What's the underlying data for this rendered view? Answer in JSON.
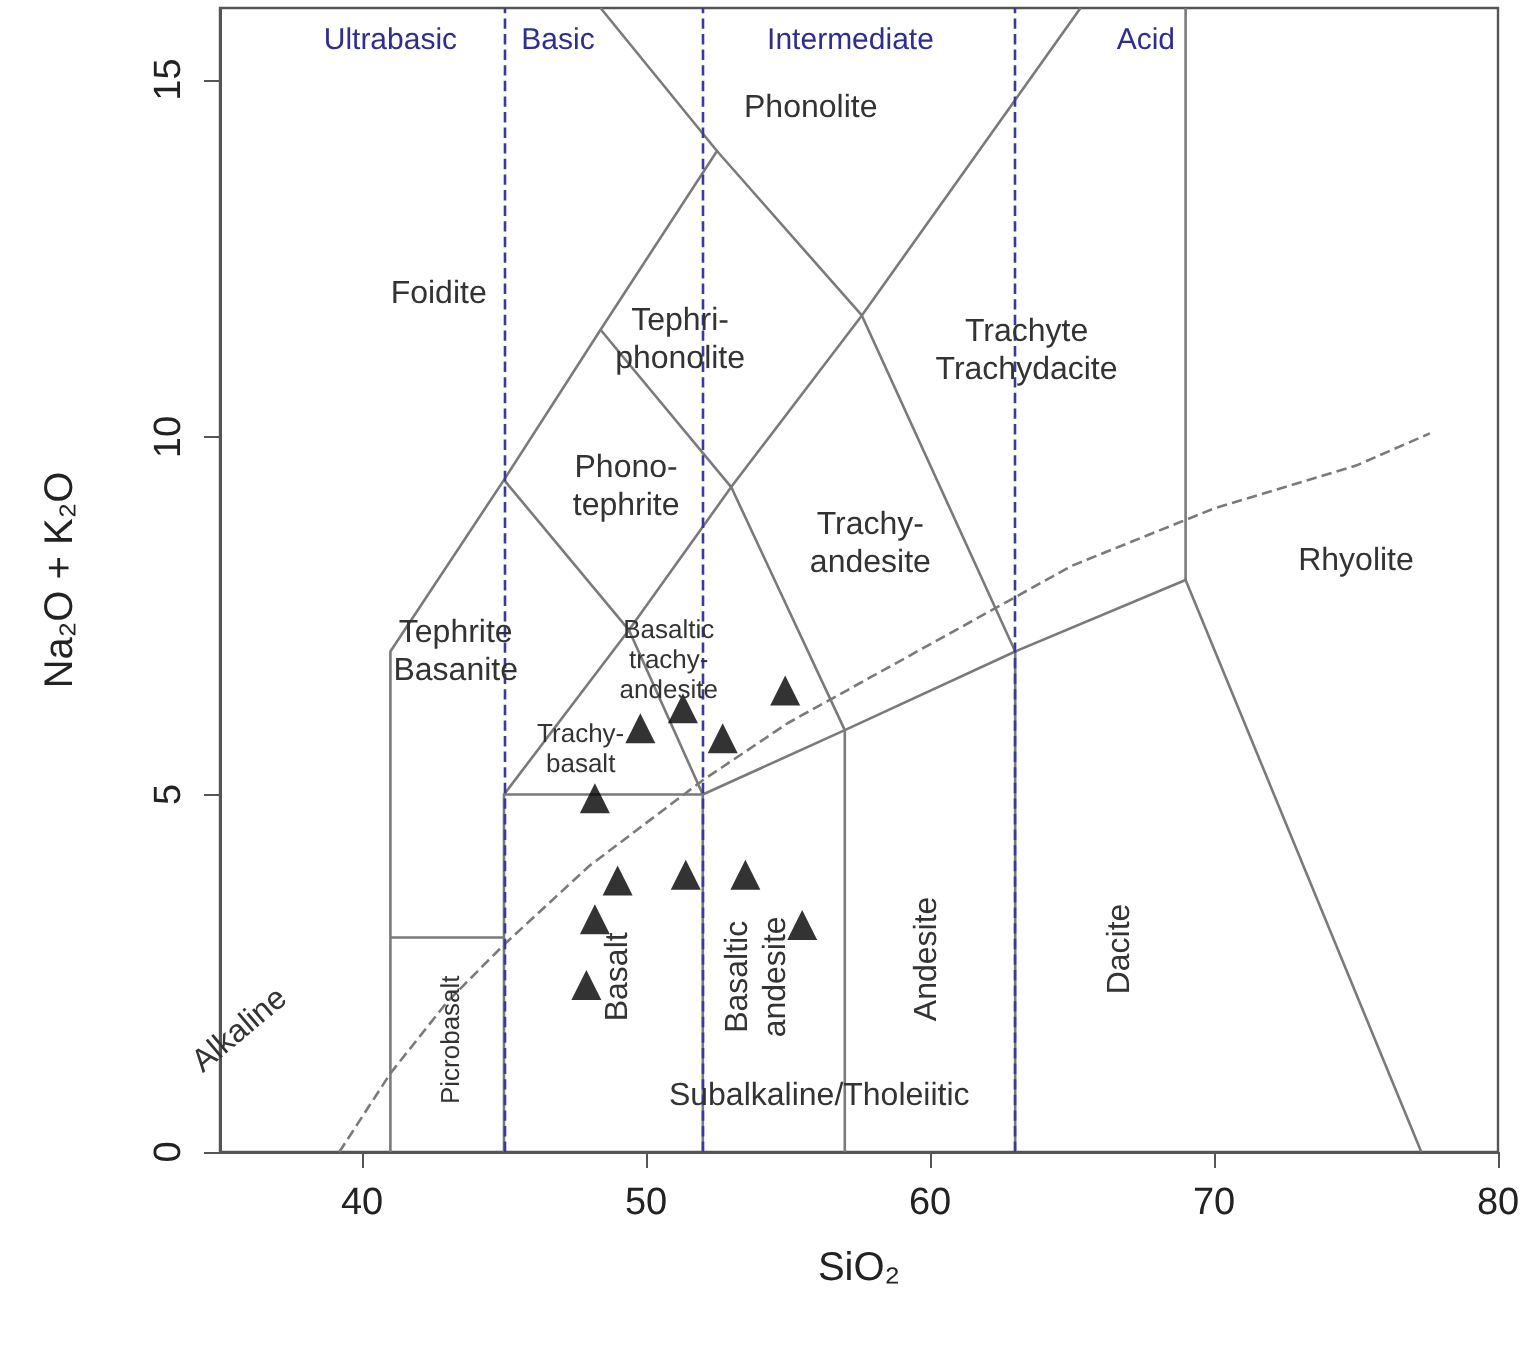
{
  "chart_data": {
    "type": "scatter",
    "xlabel": "SiO₂",
    "ylabel": "Na₂O + K₂O",
    "xlim": [
      35,
      80
    ],
    "ylim": [
      0,
      16
    ],
    "xticks": [
      40,
      50,
      60,
      70,
      80
    ],
    "yticks": [
      0,
      5,
      10,
      15
    ],
    "grid": false,
    "series": [
      {
        "type": "line",
        "color": "#7a7a7a",
        "marker": "none",
        "line_style": "solid",
        "x": [
          41,
          41,
          45,
          48.4,
          52.5,
          48.4
        ],
        "values": [
          0,
          7,
          9.4,
          11.5,
          14,
          16
        ]
      },
      {
        "type": "line",
        "color": "#7a7a7a",
        "marker": "none",
        "line_style": "solid",
        "x": [
          45,
          45,
          52,
          57,
          63,
          69,
          77.3
        ],
        "values": [
          0,
          5,
          5,
          5.9,
          7,
          8,
          0
        ]
      },
      {
        "type": "line",
        "color": "#7a7a7a",
        "marker": "none",
        "line_style": "solid",
        "x": [
          41,
          45
        ],
        "values": [
          3,
          3
        ]
      },
      {
        "type": "line",
        "color": "#7a7a7a",
        "marker": "none",
        "line_style": "solid",
        "x": [
          52,
          52,
          49.4,
          45
        ],
        "values": [
          0,
          5,
          7.3,
          9.4
        ]
      },
      {
        "type": "line",
        "color": "#7a7a7a",
        "marker": "none",
        "line_style": "solid",
        "x": [
          45,
          49.4,
          53,
          57.6,
          65.3
        ],
        "values": [
          5,
          7.3,
          9.3,
          11.7,
          16
        ]
      },
      {
        "type": "line",
        "color": "#7a7a7a",
        "marker": "none",
        "line_style": "solid",
        "x": [
          48.4,
          53,
          57,
          57
        ],
        "values": [
          11.5,
          9.3,
          5.9,
          0
        ]
      },
      {
        "type": "line",
        "color": "#7a7a7a",
        "marker": "none",
        "line_style": "solid",
        "x": [
          52.5,
          57.6,
          63,
          63
        ],
        "values": [
          14,
          11.7,
          7,
          0
        ]
      },
      {
        "type": "line",
        "color": "#7a7a7a",
        "marker": "none",
        "line_style": "solid",
        "x": [
          69,
          69
        ],
        "values": [
          8,
          16
        ]
      },
      {
        "type": "line",
        "color": "#7a7a7a",
        "marker": "none",
        "line_style": "dashed",
        "x": [
          39.2,
          41,
          43,
          45,
          48,
          50,
          52,
          55,
          60,
          65,
          70,
          75,
          77.6
        ],
        "values": [
          0,
          1.1,
          2.1,
          2.9,
          4.0,
          4.6,
          5.2,
          6.0,
          7.1,
          8.2,
          9.0,
          9.6,
          10.05
        ]
      },
      {
        "color": "#000000",
        "marker": "triangle",
        "x": [
          54.9,
          51.3,
          49.8,
          52.7,
          48.2,
          49.0,
          51.4,
          53.5,
          48.2,
          55.5,
          47.9
        ],
        "values": [
          6.4,
          6.15,
          5.87,
          5.73,
          4.89,
          3.74,
          3.82,
          3.82,
          3.2,
          3.12,
          2.28
        ]
      }
    ],
    "ref_lines": [
      {
        "axis": "x",
        "value": 45,
        "color": "#3a3a9a",
        "line_style": "dashed"
      },
      {
        "axis": "x",
        "value": 52,
        "color": "#3a3a9a",
        "line_style": "dashed"
      },
      {
        "axis": "x",
        "value": 63,
        "color": "#3a3a9a",
        "line_style": "dashed"
      }
    ],
    "annotations": [
      "Ultrabasic",
      "Basic",
      "Intermediate",
      "Acid",
      "Phonolite",
      "Foidite",
      "Tephri-\nphonolite",
      "Trachyte\nTrachydacite",
      "Phono-\ntephrite",
      "Trachy-\nandesite",
      "Rhyolite",
      "Tephrite\nBasanite",
      "Basaltic\ntrachy-\nandesite",
      "Trachy-\nbasalt",
      "Picrobasalt",
      "Basalt",
      "Basaltic\nandesite",
      "Andesite",
      "Dacite",
      "Alkaline",
      "Subalkaline/Tholeiitic"
    ]
  }
}
